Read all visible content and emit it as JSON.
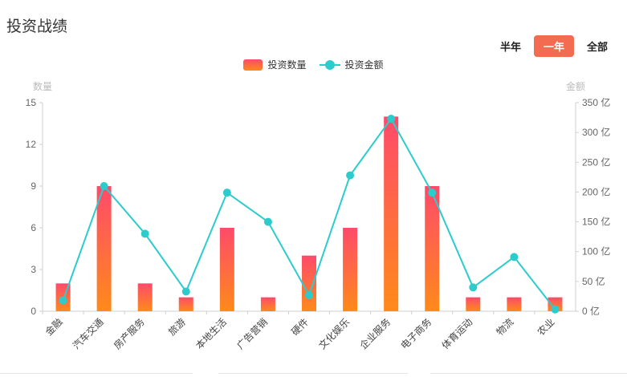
{
  "header": {
    "title": "投资战绩"
  },
  "tabs": [
    {
      "label": "半年",
      "active": false
    },
    {
      "label": "一年",
      "active": true
    },
    {
      "label": "全部",
      "active": false
    }
  ],
  "chart_data": {
    "type": "bar",
    "categories": [
      "金融",
      "汽车交通",
      "房产服务",
      "旅游",
      "本地生活",
      "广告营销",
      "硬件",
      "文化娱乐",
      "企业服务",
      "电子商务",
      "体育运动",
      "物流",
      "农业"
    ],
    "series": [
      {
        "name": "投资数量",
        "type": "bar",
        "axis": "left",
        "values": [
          2,
          9,
          2,
          1,
          6,
          1,
          4,
          6,
          14,
          9,
          1,
          1,
          1
        ]
      },
      {
        "name": "投资金额",
        "type": "line",
        "axis": "right",
        "values": [
          18,
          210,
          130,
          33,
          199,
          150,
          27,
          228,
          323,
          199,
          40,
          91,
          3
        ]
      }
    ],
    "ylabel_left": "数量",
    "ylabel_right": "金额",
    "ylim_left": [
      0,
      15
    ],
    "ylim_right": [
      0,
      350
    ],
    "yticks_left": [
      "0",
      "3",
      "6",
      "9",
      "12",
      "15"
    ],
    "yticks_right": [
      "0 亿",
      "50 亿",
      "100 亿",
      "150 亿",
      "200 亿",
      "250 亿",
      "300 亿",
      "350 亿"
    ],
    "colors": {
      "bar_top": "#ff4a6b",
      "bar_bottom": "#ff8a1a",
      "line": "#2ccccc"
    }
  }
}
